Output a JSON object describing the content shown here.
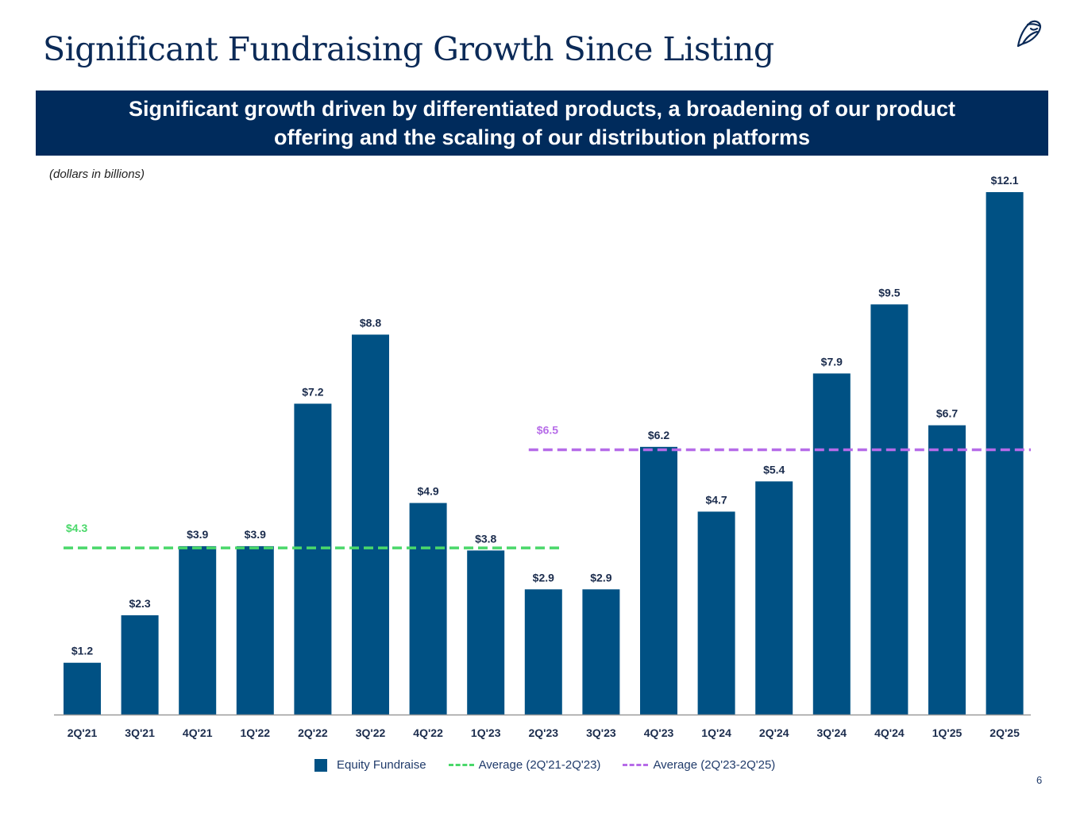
{
  "page": {
    "title": "Significant Fundraising Growth Since Listing",
    "banner_line1": "Significant growth driven by differentiated products, a broadening of our product",
    "banner_line2": "offering and the scaling of our distribution platforms",
    "unit_note": "(dollars in billions)",
    "page_number": "6",
    "logo_icon": "owl-icon"
  },
  "colors": {
    "bar": "#005184",
    "avg1": "#4ad86a",
    "avg2": "#b66be8",
    "text_dark": "#1b2c4d",
    "banner": "#002b5c"
  },
  "legend": {
    "series": "Equity Fundraise",
    "avg1": "Average (2Q'21-2Q'23)",
    "avg2": "Average (2Q'23-2Q'25)"
  },
  "chart_data": {
    "type": "bar",
    "title": "Significant Fundraising Growth Since Listing",
    "xlabel": "",
    "ylabel": "dollars in billions",
    "ylim": [
      0,
      12.5
    ],
    "grid": false,
    "legend_position": "bottom",
    "categories": [
      "2Q'21",
      "3Q'21",
      "4Q'21",
      "1Q'22",
      "2Q'22",
      "3Q'22",
      "4Q'22",
      "1Q'23",
      "2Q'23",
      "3Q'23",
      "4Q'23",
      "1Q'24",
      "2Q'24",
      "3Q'24",
      "4Q'24",
      "1Q'25",
      "2Q'25"
    ],
    "series": [
      {
        "name": "Equity Fundraise",
        "values": [
          1.2,
          2.3,
          3.9,
          3.9,
          7.2,
          8.8,
          4.9,
          3.8,
          2.9,
          2.9,
          6.2,
          4.7,
          5.4,
          7.9,
          9.5,
          6.7,
          12.1
        ],
        "labels": [
          "$1.2",
          "$2.3",
          "$3.9",
          "$3.9",
          "$7.2",
          "$8.8",
          "$4.9",
          "$3.8",
          "$2.9",
          "$2.9",
          "$6.2",
          "$4.7",
          "$5.4",
          "$7.9",
          "$9.5",
          "$6.7",
          "$12.1"
        ]
      }
    ],
    "reference_lines": [
      {
        "name": "Average (2Q'21-2Q'23)",
        "value": 4.3,
        "label": "$4.3",
        "from": "2Q'21",
        "to": "2Q'23"
      },
      {
        "name": "Average (2Q'23-2Q'25)",
        "value": 6.5,
        "label": "$6.5",
        "from": "2Q'23",
        "to": "2Q'25"
      }
    ]
  }
}
